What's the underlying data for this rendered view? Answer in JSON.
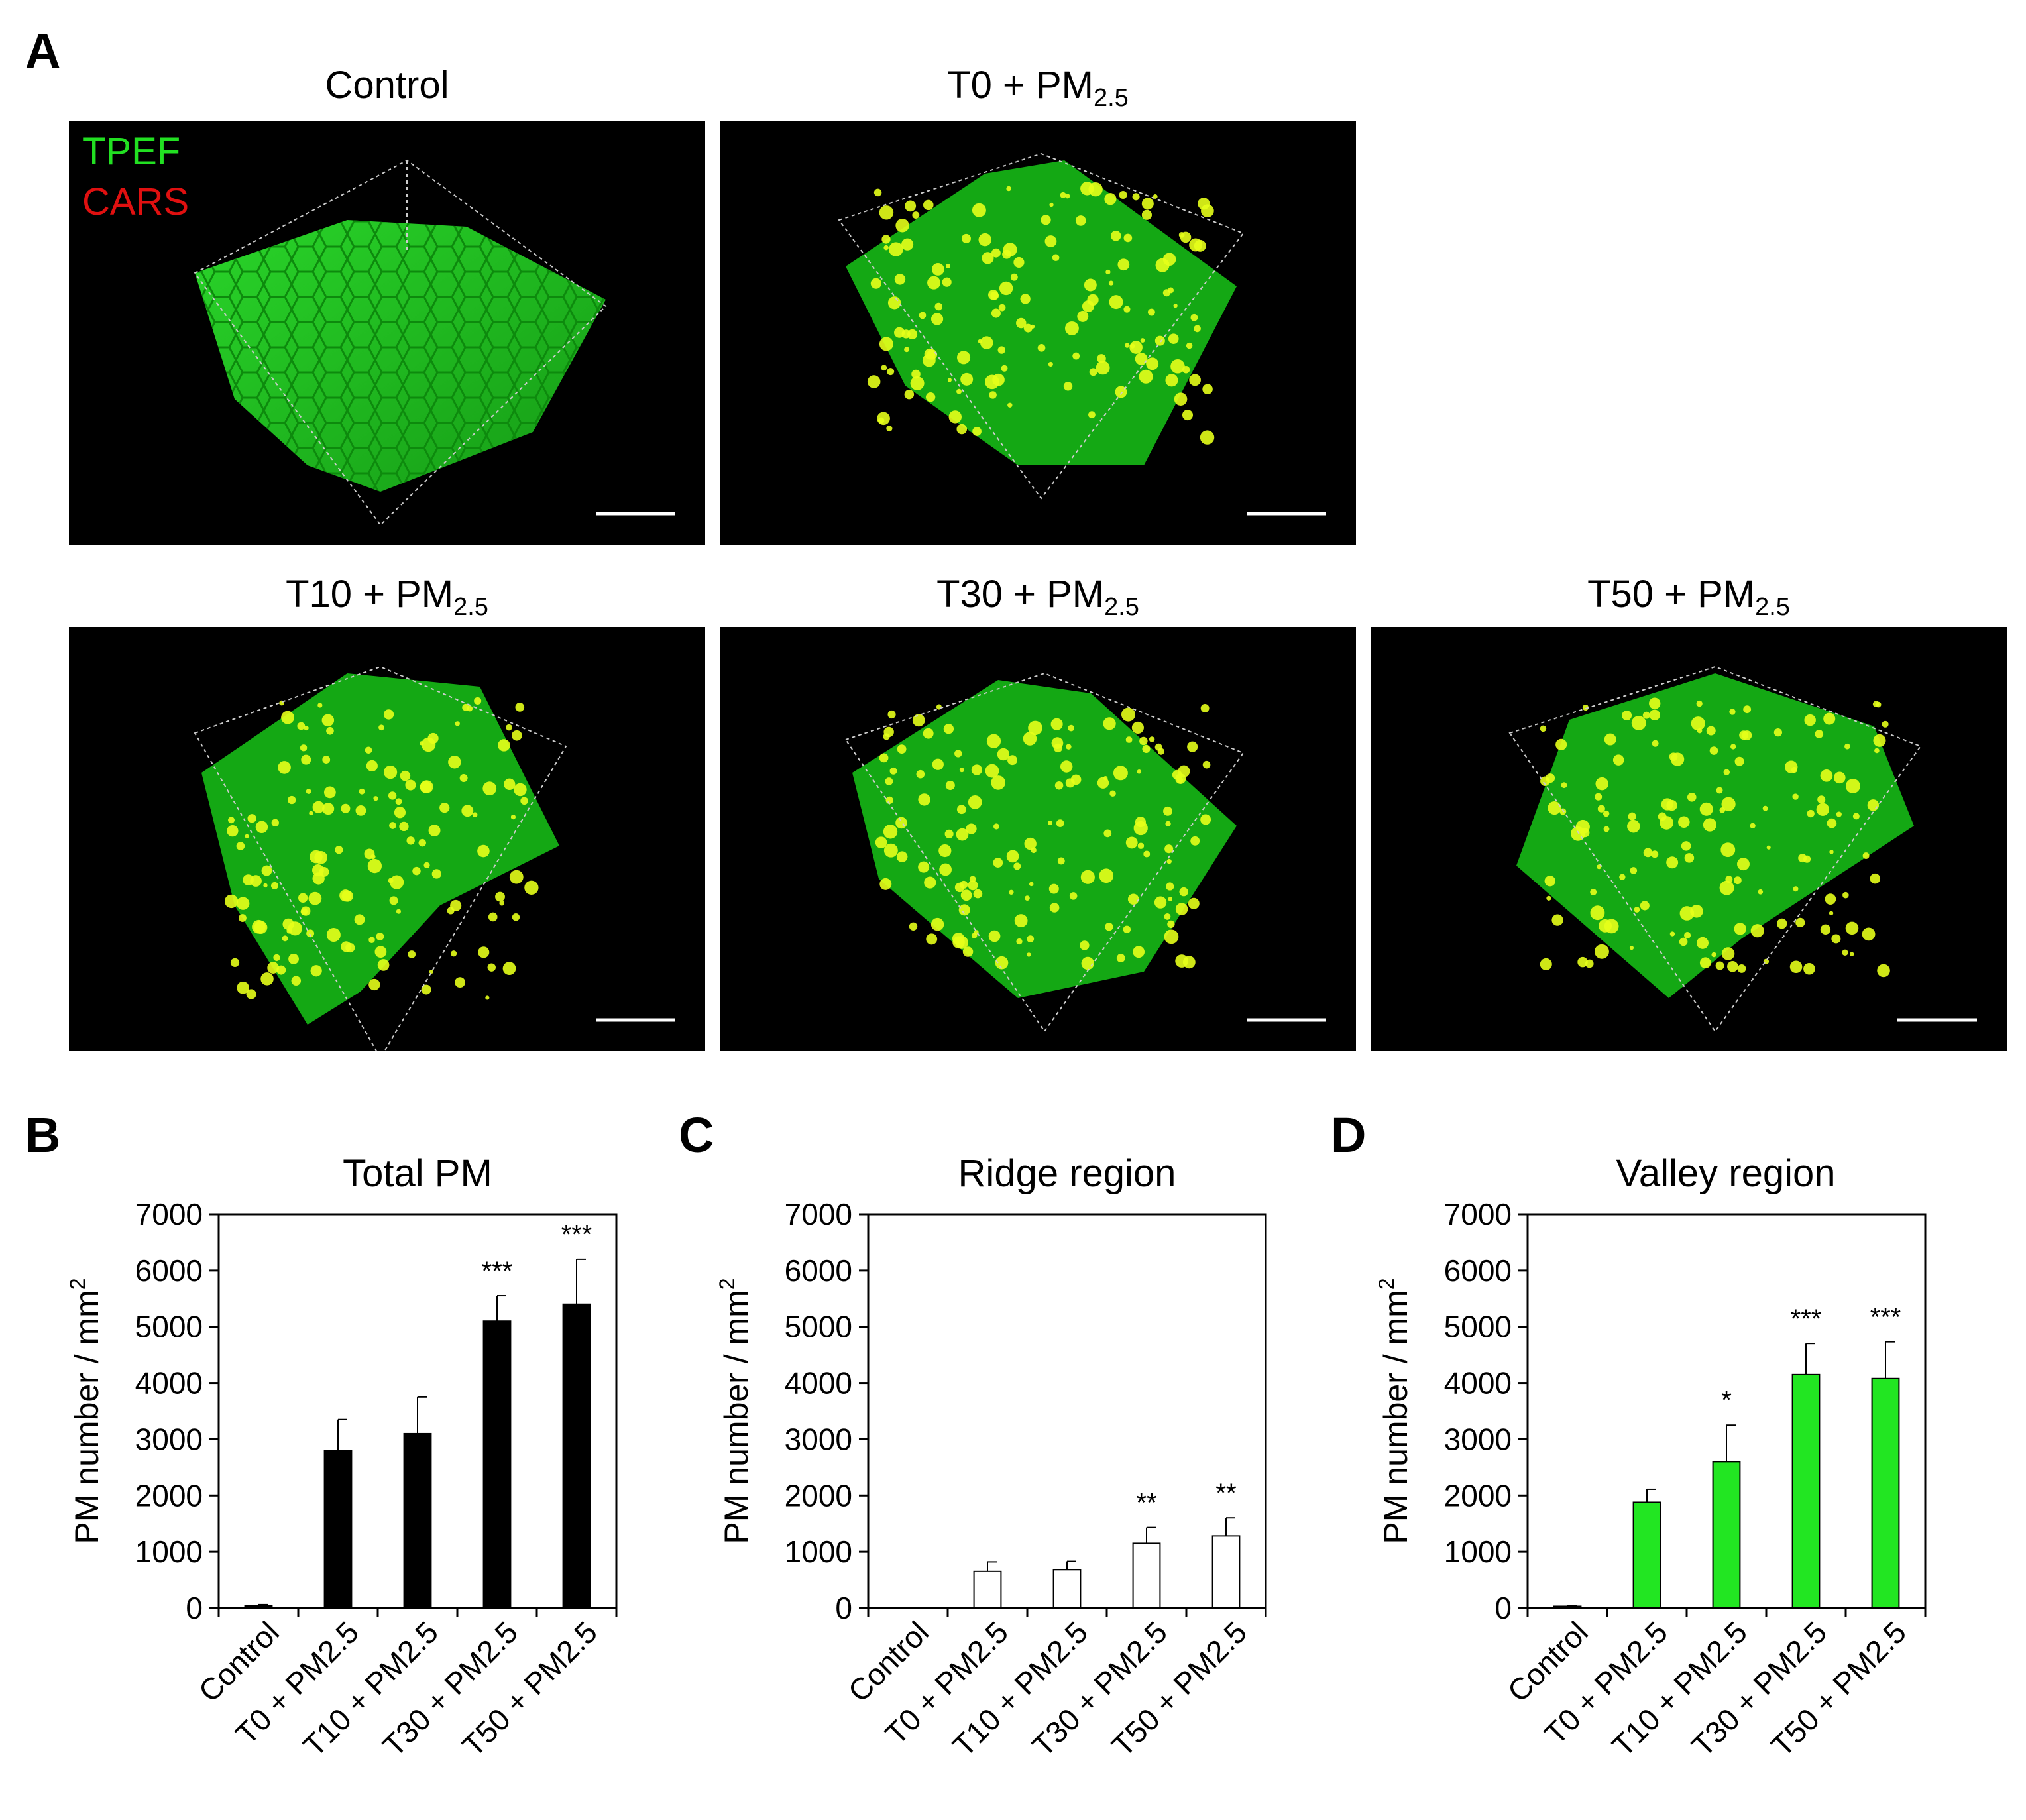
{
  "panel_a": {
    "letter": "A",
    "legend": {
      "tpef": "TPEF",
      "cars": "CARS"
    },
    "images": [
      {
        "title": "Control",
        "sub": ""
      },
      {
        "title": "T0 + PM",
        "sub": "2.5"
      },
      {
        "title": "T10 + PM",
        "sub": "2.5"
      },
      {
        "title": "T30 + PM",
        "sub": "2.5"
      },
      {
        "title": "T50 + PM",
        "sub": "2.5"
      }
    ]
  },
  "colors": {
    "tissue": "#1fc21f",
    "particle": "#e6ff1a",
    "black_bar": "#000000",
    "white_bar": "#ffffff",
    "green_bar": "#22e622"
  },
  "chart_data": [
    {
      "type": "bar",
      "letter": "B",
      "title": "Total PM",
      "ylabel": "PM number / mm",
      "ylabel_sup": "2",
      "categories": [
        "Control",
        "T0 + PM2.5",
        "T10 + PM2.5",
        "T30 + PM2.5",
        "T50 + PM2.5"
      ],
      "values": [
        40,
        2800,
        3100,
        5100,
        5400
      ],
      "errors": [
        20,
        550,
        650,
        450,
        800
      ],
      "significance": [
        "",
        "",
        "",
        "***",
        "***"
      ],
      "yticks": [
        "0",
        "1000",
        "2000",
        "3000",
        "4000",
        "5000",
        "6000",
        "7000"
      ],
      "ylim": [
        0,
        7000
      ],
      "bar_color": "#000000"
    },
    {
      "type": "bar",
      "letter": "C",
      "title": "Ridge region",
      "ylabel": "PM number / mm",
      "ylabel_sup": "2",
      "categories": [
        "Control",
        "T0 + PM2.5",
        "T10 + PM2.5",
        "T30 + PM2.5",
        "T50 + PM2.5"
      ],
      "values": [
        5,
        650,
        680,
        1150,
        1280
      ],
      "errors": [
        5,
        170,
        150,
        280,
        320
      ],
      "significance": [
        "",
        "",
        "",
        "**",
        "**"
      ],
      "yticks": [
        "0",
        "1000",
        "2000",
        "3000",
        "4000",
        "5000",
        "6000",
        "7000"
      ],
      "ylim": [
        0,
        7000
      ],
      "bar_color": "#ffffff"
    },
    {
      "type": "bar",
      "letter": "D",
      "title": "Valley region",
      "ylabel": "PM number / mm",
      "ylabel_sup": "2",
      "categories": [
        "Control",
        "T0 + PM2.5",
        "T10 + PM2.5",
        "T30 + PM2.5",
        "T50 + PM2.5"
      ],
      "values": [
        30,
        1880,
        2600,
        4150,
        4080
      ],
      "errors": [
        15,
        230,
        650,
        550,
        650
      ],
      "significance": [
        "",
        "",
        "*",
        "***",
        "***"
      ],
      "yticks": [
        "0",
        "1000",
        "2000",
        "3000",
        "4000",
        "5000",
        "6000",
        "7000"
      ],
      "ylim": [
        0,
        7000
      ],
      "bar_color": "#22e622"
    }
  ]
}
